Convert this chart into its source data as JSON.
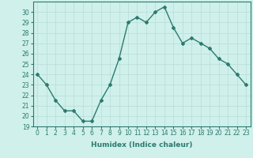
{
  "xlabel": "Humidex (Indice chaleur)",
  "ylabel": "",
  "x": [
    0,
    1,
    2,
    3,
    4,
    5,
    6,
    7,
    8,
    9,
    10,
    11,
    12,
    13,
    14,
    15,
    16,
    17,
    18,
    19,
    20,
    21,
    22,
    23
  ],
  "y": [
    24,
    23,
    21.5,
    20.5,
    20.5,
    19.5,
    19.5,
    21.5,
    23,
    25.5,
    29,
    29.5,
    29,
    30,
    30.5,
    28.5,
    27,
    27.5,
    27,
    26.5,
    25.5,
    25,
    24,
    23
  ],
  "ylim": [
    19,
    31
  ],
  "yticks": [
    19,
    20,
    21,
    22,
    23,
    24,
    25,
    26,
    27,
    28,
    29,
    30
  ],
  "xticks": [
    0,
    1,
    2,
    3,
    4,
    5,
    6,
    7,
    8,
    9,
    10,
    11,
    12,
    13,
    14,
    15,
    16,
    17,
    18,
    19,
    20,
    21,
    22,
    23
  ],
  "line_color": "#2d7a6e",
  "marker": "D",
  "marker_size": 2,
  "bg_color": "#cff0eb",
  "grid_color": "#b8ddd8",
  "line_width": 1.0,
  "tick_fontsize": 5.5,
  "xlabel_fontsize": 6.5
}
